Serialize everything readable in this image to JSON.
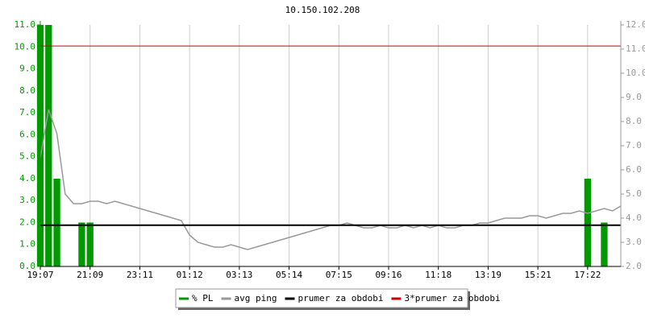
{
  "chart_data": {
    "type": "line",
    "title": "10.150.102.208",
    "categories": [
      "19:07",
      null,
      null,
      null,
      null,
      null,
      "21:09",
      null,
      null,
      null,
      null,
      null,
      "23:11",
      null,
      null,
      null,
      null,
      null,
      "01:12",
      null,
      null,
      null,
      null,
      null,
      "03:13",
      null,
      null,
      null,
      null,
      null,
      "05:14",
      null,
      null,
      null,
      null,
      null,
      "07:15",
      null,
      null,
      null,
      null,
      null,
      "09:16",
      null,
      null,
      null,
      null,
      null,
      "11:18",
      null,
      null,
      null,
      null,
      null,
      "13:19",
      null,
      null,
      null,
      null,
      null,
      "15:21",
      null,
      null,
      null,
      null,
      null,
      "17:22",
      null,
      null,
      null,
      null
    ],
    "series": [
      {
        "name": "% PL",
        "color": "#009900",
        "type": "bar",
        "values": [
          11,
          11,
          4,
          0,
          0,
          2,
          2,
          0,
          0,
          0,
          0,
          0,
          0,
          0,
          0,
          0,
          0,
          0,
          0,
          0,
          0,
          0,
          0,
          0,
          0,
          0,
          0,
          0,
          0,
          0,
          0,
          0,
          0,
          0,
          0,
          0,
          0,
          0,
          0,
          0,
          0,
          0,
          0,
          0,
          0,
          0,
          0,
          0,
          0,
          0,
          0,
          0,
          0,
          0,
          0,
          0,
          0,
          0,
          0,
          0,
          0,
          0,
          0,
          0,
          0,
          0,
          4,
          0,
          2,
          0,
          0
        ]
      },
      {
        "name": "avg ping",
        "color": "#999999",
        "axis": "y2",
        "values": [
          6.5,
          8.5,
          7.5,
          5.0,
          4.6,
          4.6,
          4.7,
          4.7,
          4.6,
          4.7,
          4.6,
          4.5,
          4.4,
          4.3,
          4.2,
          4.1,
          4.0,
          3.9,
          3.3,
          3.0,
          2.9,
          2.8,
          2.8,
          2.9,
          2.8,
          2.7,
          2.8,
          2.9,
          3.0,
          3.1,
          3.2,
          3.3,
          3.4,
          3.5,
          3.6,
          3.7,
          3.7,
          3.8,
          3.7,
          3.6,
          3.6,
          3.7,
          3.6,
          3.6,
          3.7,
          3.6,
          3.7,
          3.6,
          3.7,
          3.6,
          3.6,
          3.7,
          3.7,
          3.8,
          3.8,
          3.9,
          4.0,
          4.0,
          4.0,
          4.1,
          4.1,
          4.0,
          4.1,
          4.2,
          4.2,
          4.3,
          4.2,
          4.3,
          4.4,
          4.3,
          4.5
        ]
      },
      {
        "name": "prumer za obdobi",
        "color": "#000000",
        "axis": "y2",
        "value": 3.71
      },
      {
        "name": "3*prumer za obdobi",
        "color": "#cc0000",
        "axis": "y2",
        "value": 11.13
      }
    ],
    "ylim": [
      0,
      11
    ],
    "yticks": [
      {
        "value": 0,
        "label": "0.0"
      },
      {
        "value": 1,
        "label": "1.0"
      },
      {
        "value": 2,
        "label": "2.0"
      },
      {
        "value": 3,
        "label": "3.0"
      },
      {
        "value": 4,
        "label": "4.0"
      },
      {
        "value": 5,
        "label": "5.0"
      },
      {
        "value": 6,
        "label": "6.0"
      },
      {
        "value": 7,
        "label": "7.0"
      },
      {
        "value": 8,
        "label": "8.0"
      },
      {
        "value": 9,
        "label": "9.0"
      },
      {
        "value": 10,
        "label": "10.0"
      },
      {
        "value": 11,
        "label": "11.0"
      }
    ],
    "y2lim": [
      2,
      12
    ],
    "y2ticks": [
      {
        "value": 2,
        "label": "2.0"
      },
      {
        "value": 3,
        "label": "3.0"
      },
      {
        "value": 4,
        "label": "4.0"
      },
      {
        "value": 5,
        "label": "5.0"
      },
      {
        "value": 6,
        "label": "6.0"
      },
      {
        "value": 7,
        "label": "7.0"
      },
      {
        "value": 8,
        "label": "8.0"
      },
      {
        "value": 9,
        "label": "9.0"
      },
      {
        "value": 10,
        "label": "10.0"
      },
      {
        "value": 11,
        "label": "11.0"
      },
      {
        "value": 12,
        "label": "12.0"
      }
    ],
    "grid": true
  }
}
